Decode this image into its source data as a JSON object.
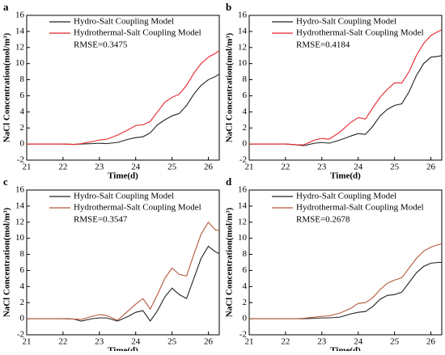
{
  "chart_data": [
    {
      "type": "line",
      "label": "a",
      "xlabel": "Time(d)",
      "ylabel": "NaCl Concentration(mol/m³)",
      "annotation": "RMSE=0.3475",
      "x": [
        21,
        21.5,
        22,
        22.3,
        22.5,
        22.8,
        23,
        23.2,
        23.5,
        23.8,
        24,
        24.2,
        24.4,
        24.6,
        24.8,
        25,
        25.2,
        25.4,
        25.6,
        25.8,
        26,
        26.2,
        26.3
      ],
      "series": [
        {
          "name": "Hydro-Salt Coupling Model",
          "color": "#222222",
          "values": [
            0,
            0,
            0,
            -0.05,
            0,
            0.05,
            0.1,
            0.05,
            0.2,
            0.6,
            0.8,
            0.9,
            1.4,
            2.4,
            3.0,
            3.5,
            3.8,
            4.8,
            6.2,
            7.3,
            8.0,
            8.4,
            8.7
          ]
        },
        {
          "name": "Hydrothermal-Salt Coupling Model",
          "color": "#e8262a",
          "values": [
            0,
            0,
            0,
            -0.05,
            0.05,
            0.3,
            0.5,
            0.6,
            1.1,
            1.8,
            2.3,
            2.4,
            2.8,
            4.0,
            5.2,
            5.8,
            6.2,
            7.3,
            8.8,
            10.0,
            10.8,
            11.3,
            11.6
          ]
        }
      ],
      "xlim": [
        21,
        26.3
      ],
      "ylim": [
        -2,
        16
      ],
      "xticks": [
        21,
        22,
        23,
        24,
        25,
        26
      ],
      "yticks": [
        -2,
        0,
        2,
        4,
        6,
        8,
        10,
        12,
        14,
        16
      ]
    },
    {
      "type": "line",
      "label": "b",
      "xlabel": "Time(d)",
      "ylabel": "NaCl Concentration(mol/m³)",
      "annotation": "RMSE=0.4184",
      "x": [
        21,
        21.5,
        22,
        22.3,
        22.5,
        22.8,
        23,
        23.2,
        23.5,
        23.8,
        24,
        24.2,
        24.4,
        24.6,
        24.8,
        25,
        25.2,
        25.4,
        25.6,
        25.8,
        26,
        26.2,
        26.3
      ],
      "series": [
        {
          "name": "Hydro-Salt Coupling Model",
          "color": "#222222",
          "values": [
            0,
            0,
            0,
            -0.1,
            -0.2,
            0.1,
            0.2,
            0.1,
            0.5,
            1.0,
            1.3,
            1.2,
            2.2,
            3.5,
            4.3,
            4.8,
            5.0,
            6.5,
            8.5,
            10.0,
            10.8,
            10.9,
            11.0
          ]
        },
        {
          "name": "Hydrothermal-Salt Coupling Model",
          "color": "#e8262a",
          "values": [
            0,
            0,
            0,
            -0.1,
            -0.1,
            0.5,
            0.7,
            0.6,
            1.5,
            2.7,
            3.3,
            3.1,
            4.5,
            5.8,
            6.8,
            7.6,
            7.6,
            9.0,
            11.0,
            12.5,
            13.5,
            14.0,
            14.2
          ]
        }
      ],
      "xlim": [
        21,
        26.3
      ],
      "ylim": [
        -2,
        16
      ],
      "xticks": [
        21,
        22,
        23,
        24,
        25,
        26
      ],
      "yticks": [
        -2,
        0,
        2,
        4,
        6,
        8,
        10,
        12,
        14,
        16
      ]
    },
    {
      "type": "line",
      "label": "c",
      "xlabel": "Time(d)",
      "ylabel": "NaCl Concentration(mol/m³)",
      "annotation": "RMSE=0.3547",
      "x": [
        21,
        21.5,
        22,
        22.3,
        22.5,
        22.8,
        23,
        23.2,
        23.5,
        23.8,
        24,
        24.2,
        24.4,
        24.6,
        24.8,
        25,
        25.2,
        25.4,
        25.6,
        25.8,
        26,
        26.2,
        26.3
      ],
      "series": [
        {
          "name": "Hydro-Salt Coupling Model",
          "color": "#222222",
          "values": [
            0,
            0,
            0,
            -0.05,
            -0.3,
            0,
            0.1,
            0.1,
            -0.3,
            0.3,
            0.8,
            1.0,
            -0.3,
            1.0,
            2.7,
            3.8,
            3.0,
            2.5,
            5.0,
            7.5,
            9.0,
            8.3,
            8.1
          ]
        },
        {
          "name": "Hydrothermal-Salt Coupling Model",
          "color": "#b5573a",
          "values": [
            0,
            0,
            0,
            -0.05,
            -0.1,
            0.3,
            0.5,
            0.4,
            -0.2,
            1.0,
            1.8,
            2.5,
            1.2,
            3.0,
            5.0,
            6.3,
            5.5,
            5.3,
            8.0,
            10.5,
            12.0,
            11.0,
            11.0
          ]
        }
      ],
      "xlim": [
        21,
        26.3
      ],
      "ylim": [
        -2,
        16
      ],
      "xticks": [
        21,
        22,
        23,
        24,
        25,
        26
      ],
      "yticks": [
        -2,
        0,
        2,
        4,
        6,
        8,
        10,
        12,
        14,
        16
      ]
    },
    {
      "type": "line",
      "label": "d",
      "xlabel": "Time(d)",
      "ylabel": "NaCl Concentration(mol/m³)",
      "annotation": "RMSE=0.2678",
      "x": [
        21,
        21.5,
        22,
        22.3,
        22.5,
        22.8,
        23,
        23.2,
        23.5,
        23.8,
        24,
        24.2,
        24.4,
        24.6,
        24.8,
        25,
        25.2,
        25.4,
        25.6,
        25.8,
        26,
        26.2,
        26.3
      ],
      "series": [
        {
          "name": "Hydro-Salt Coupling Model",
          "color": "#222222",
          "values": [
            0,
            0,
            0,
            0,
            0,
            0.05,
            0.1,
            0.1,
            0.2,
            0.6,
            0.8,
            0.9,
            1.5,
            2.4,
            2.9,
            3.0,
            3.3,
            4.5,
            5.7,
            6.5,
            6.9,
            7.0,
            7.0
          ]
        },
        {
          "name": "Hydrothermal-Salt Coupling Model",
          "color": "#b5573a",
          "values": [
            0,
            0,
            0,
            0,
            0.05,
            0.2,
            0.3,
            0.35,
            0.7,
            1.3,
            1.9,
            2.0,
            2.6,
            3.6,
            4.4,
            4.8,
            5.1,
            6.3,
            7.5,
            8.4,
            8.9,
            9.2,
            9.3
          ]
        }
      ],
      "xlim": [
        21,
        26.3
      ],
      "ylim": [
        -2,
        16
      ],
      "xticks": [
        21,
        22,
        23,
        24,
        25,
        26
      ],
      "yticks": [
        -2,
        0,
        2,
        4,
        6,
        8,
        10,
        12,
        14,
        16
      ]
    }
  ]
}
